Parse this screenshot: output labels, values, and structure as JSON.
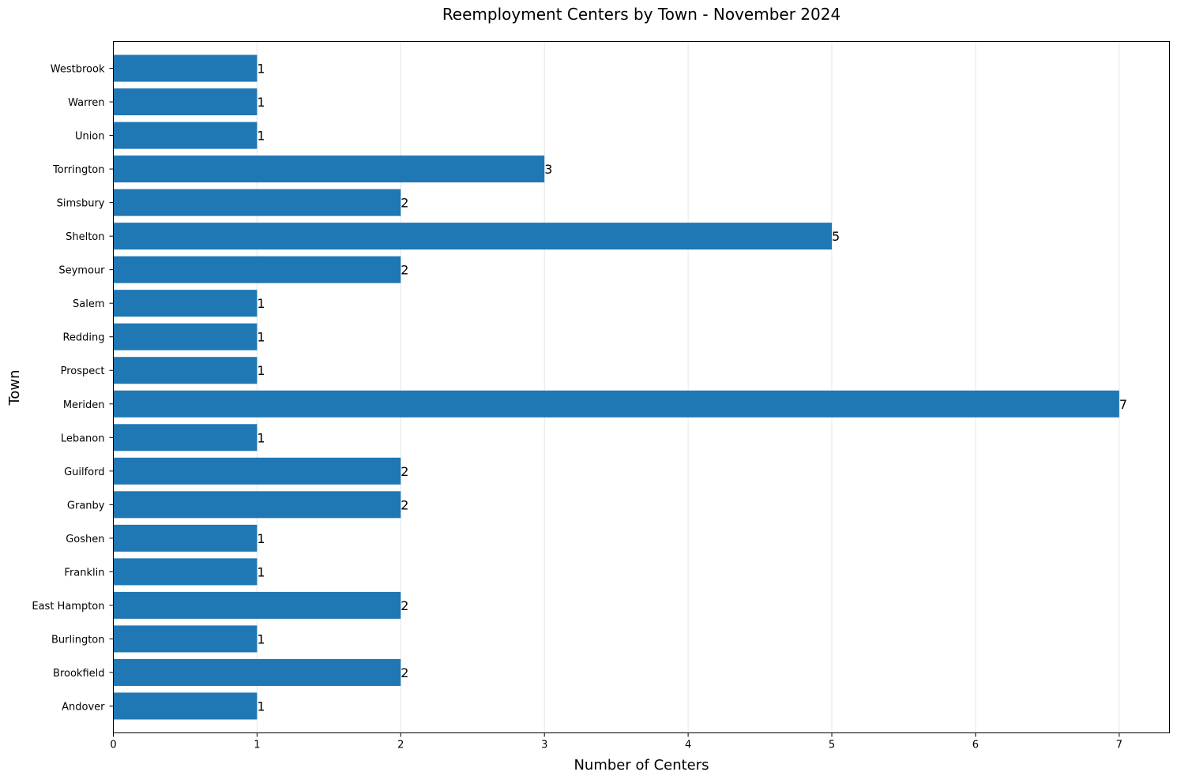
{
  "chart_data": {
    "type": "bar",
    "orientation": "horizontal",
    "title": "Reemployment Centers by Town - November 2024",
    "xlabel": "Number of Centers",
    "ylabel": "Town",
    "categories": [
      "Andover",
      "Brookfield",
      "Burlington",
      "East Hampton",
      "Franklin",
      "Goshen",
      "Granby",
      "Guilford",
      "Lebanon",
      "Meriden",
      "Prospect",
      "Redding",
      "Salem",
      "Seymour",
      "Shelton",
      "Simsbury",
      "Torrington",
      "Union",
      "Warren",
      "Westbrook"
    ],
    "values": [
      1,
      2,
      1,
      2,
      1,
      1,
      2,
      2,
      1,
      7,
      1,
      1,
      1,
      2,
      5,
      2,
      3,
      1,
      1,
      1
    ],
    "data_labels": [
      "1",
      "2",
      "1",
      "2",
      "1",
      "1",
      "2",
      "2",
      "1",
      "7",
      "1",
      "1",
      "1",
      "2",
      "5",
      "2",
      "3",
      "1",
      "1",
      "1"
    ],
    "xlim": [
      0,
      7.35
    ],
    "xticks": [
      0,
      1,
      2,
      3,
      4,
      5,
      6,
      7
    ],
    "xtick_labels": [
      "0",
      "1",
      "2",
      "3",
      "4",
      "5",
      "6",
      "7"
    ],
    "grid": "x-axis vertical lines, light",
    "bar_color": "#1f77b4",
    "legend": "none"
  }
}
